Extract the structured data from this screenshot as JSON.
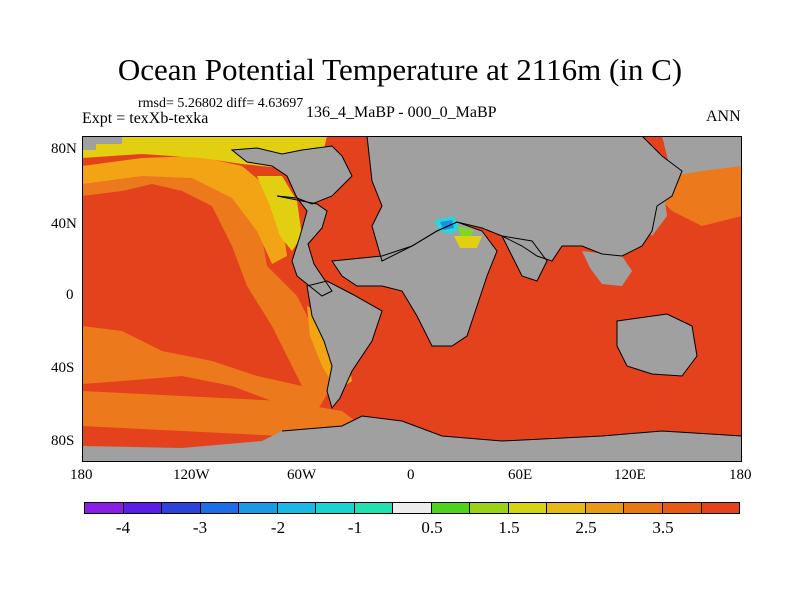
{
  "title": "Ocean Potential Temperature at 2116m (in C)",
  "stats": "rmsd= 5.26802 diff= 4.63697",
  "experiment": "Expt = texXb-texka",
  "subtitle": "136_4_MaBP - 000_0_MaBP",
  "season": "ANN",
  "lat_labels": [
    "80N",
    "40N",
    "0",
    "40S",
    "80S"
  ],
  "lon_labels": [
    "180",
    "120W",
    "60W",
    "0",
    "60E",
    "120E",
    "180"
  ],
  "colors": {
    "land": "#a0a0a0",
    "ocean_main": "#e4421c",
    "ocean_mid": "#ec7a1c",
    "ocean_warm": "#f2a414",
    "ocean_yellow": "#e3cf12",
    "ocean_green": "#7ed628",
    "ocean_cyan": "#2ad4d8",
    "ocean_blue": "#1a8ee8"
  },
  "colorbar": {
    "colors": [
      "#8a1ee6",
      "#5a1ee6",
      "#2c42dc",
      "#1a6ee8",
      "#1a9ae6",
      "#1ab8e6",
      "#1ad2d2",
      "#20e2b0",
      "#ececec",
      "#4ed21e",
      "#9ad214",
      "#d4d414",
      "#e8b814",
      "#e89a14",
      "#e87814",
      "#e85a14",
      "#e4421c"
    ],
    "labels": [
      "-4",
      "-3",
      "-2",
      "-1",
      "0.5",
      "1.5",
      "2.5",
      "3.5"
    ]
  }
}
